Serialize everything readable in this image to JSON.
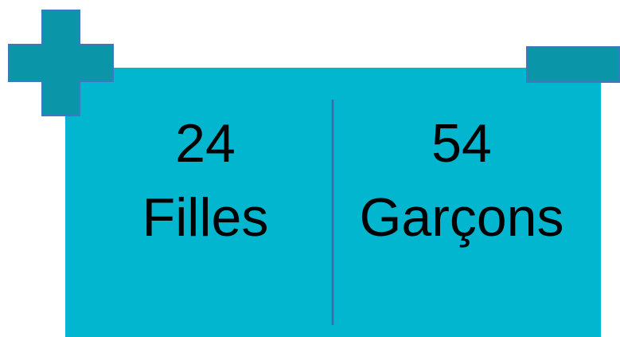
{
  "cells": [
    {
      "value": 24,
      "label": "Filles"
    },
    {
      "value": 54,
      "label": "Garçons"
    }
  ]
}
